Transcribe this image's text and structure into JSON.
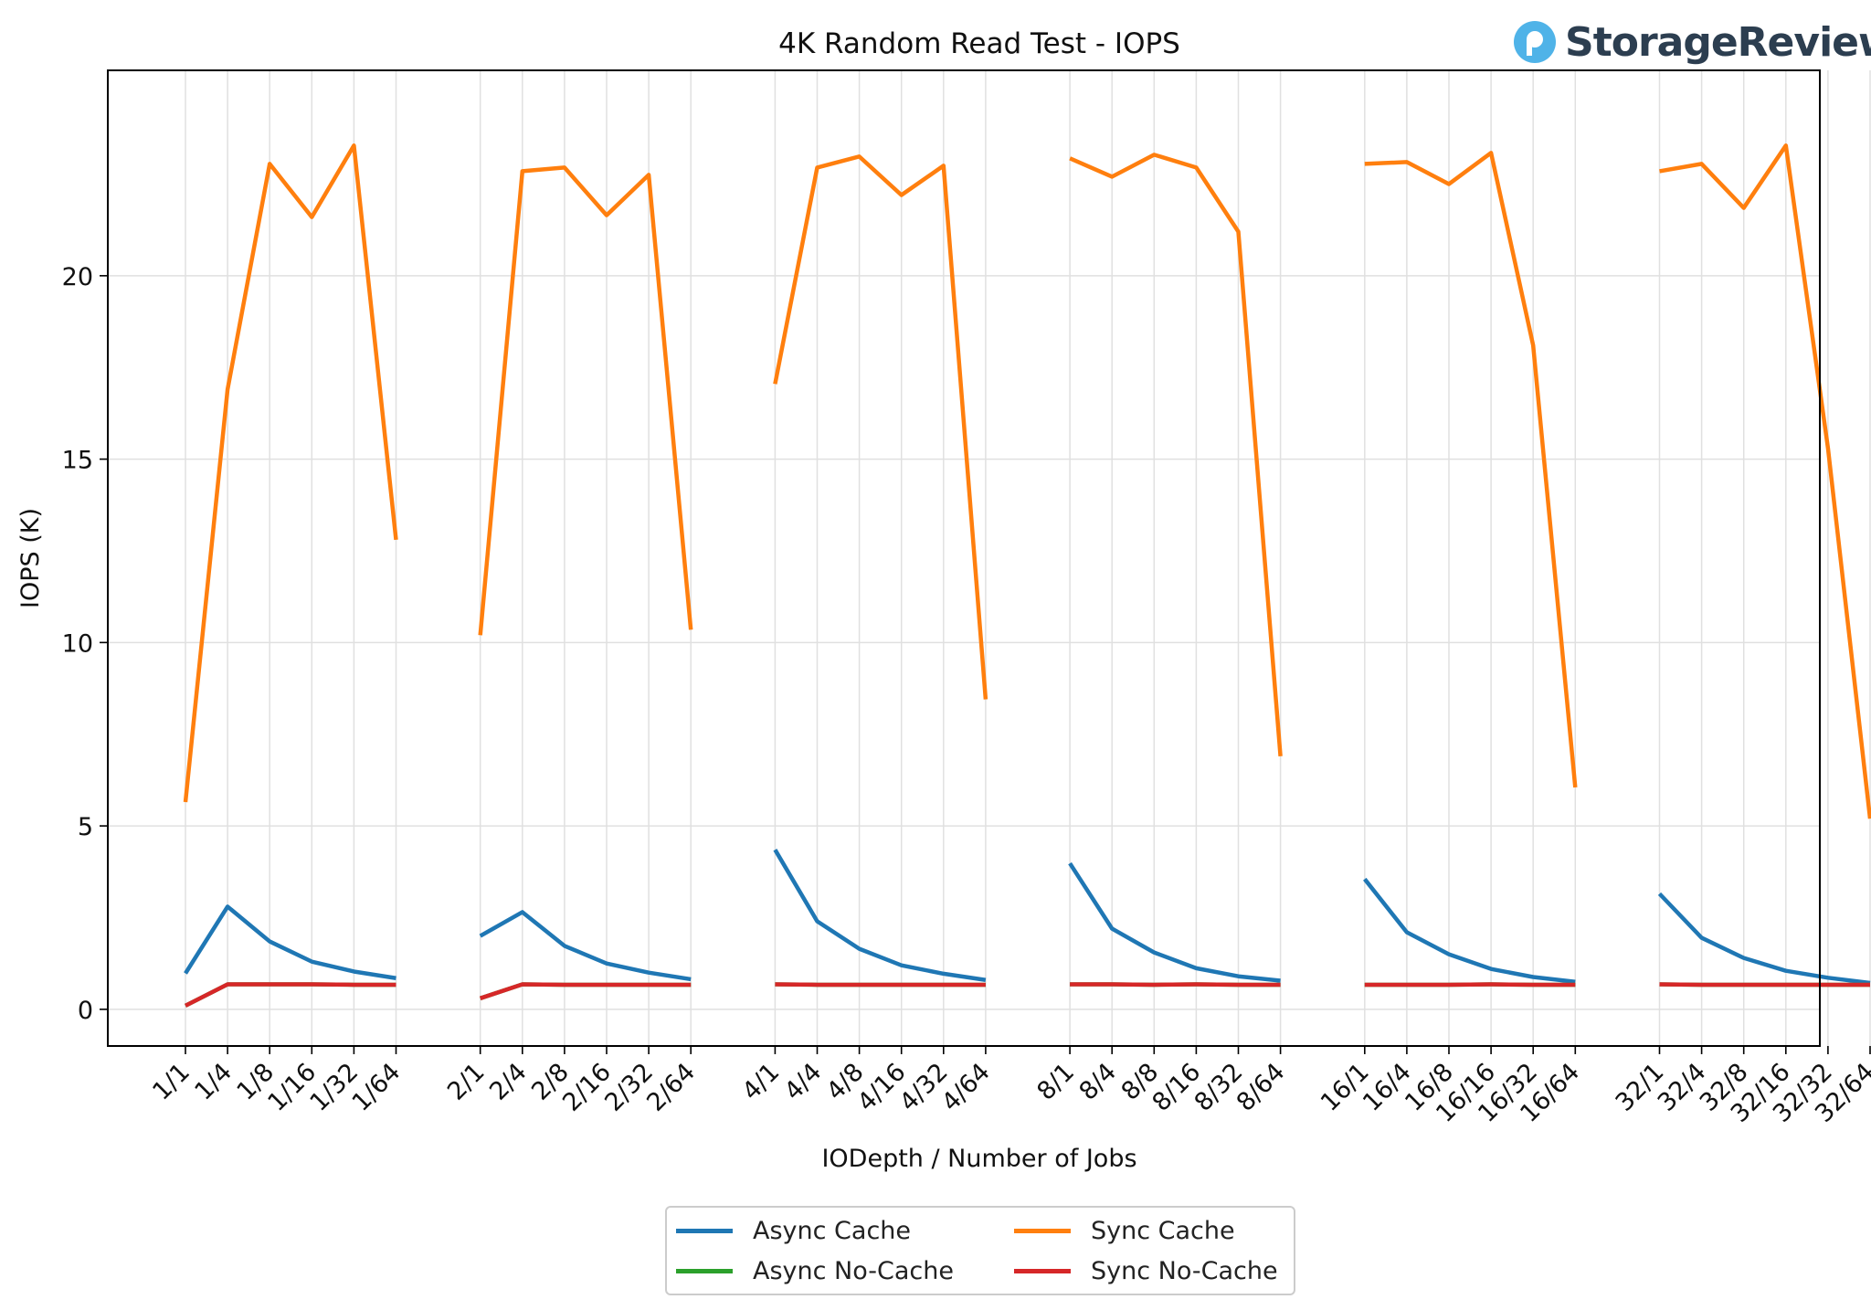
{
  "logo": {
    "text": "StorageReview",
    "icon": "storagereview-logo-icon",
    "color": "#4fb3e8"
  },
  "chart_data": {
    "type": "line",
    "title": "4K Random Read Test - IOPS",
    "xlabel": "IODepth / Number of Jobs",
    "ylabel": "IOPS (K)",
    "ylim": [
      -1,
      25.6
    ],
    "yticks": [
      0,
      5,
      10,
      15,
      20
    ],
    "grid": true,
    "legend_position": "bottom-center",
    "groups": [
      [
        "1/1",
        "1/4",
        "1/8",
        "1/16",
        "1/32",
        "1/64"
      ],
      [
        "2/1",
        "2/4",
        "2/8",
        "2/16",
        "2/32",
        "2/64"
      ],
      [
        "4/1",
        "4/4",
        "4/8",
        "4/16",
        "4/32",
        "4/64"
      ],
      [
        "8/1",
        "8/4",
        "8/8",
        "8/16",
        "8/32",
        "8/64"
      ],
      [
        "16/1",
        "16/4",
        "16/8",
        "16/16",
        "16/32",
        "16/64"
      ],
      [
        "32/1",
        "32/4",
        "32/8",
        "32/16",
        "32/32",
        "32/64"
      ]
    ],
    "series": [
      {
        "name": "Async Cache",
        "color": "#1f77b4",
        "values": [
          0.98,
          2.8,
          1.85,
          1.3,
          1.03,
          0.85,
          2.0,
          2.65,
          1.73,
          1.25,
          1.0,
          0.82,
          4.35,
          2.4,
          1.65,
          1.2,
          0.97,
          0.8,
          3.98,
          2.2,
          1.55,
          1.12,
          0.9,
          0.78,
          3.55,
          2.1,
          1.5,
          1.1,
          0.88,
          0.75,
          3.15,
          1.95,
          1.4,
          1.05,
          0.86,
          0.72
        ]
      },
      {
        "name": "Async No-Cache",
        "color": "#2ca02c",
        "values": [
          0.1,
          0.68,
          0.68,
          0.68,
          0.67,
          0.67,
          0.3,
          0.68,
          0.67,
          0.67,
          0.67,
          0.67,
          0.68,
          0.67,
          0.67,
          0.67,
          0.67,
          0.67,
          0.68,
          0.68,
          0.67,
          0.68,
          0.67,
          0.67,
          0.67,
          0.67,
          0.67,
          0.68,
          0.67,
          0.67,
          0.68,
          0.67,
          0.67,
          0.67,
          0.67,
          0.67
        ]
      },
      {
        "name": "Sync Cache",
        "color": "#ff7f0e",
        "values": [
          5.65,
          16.9,
          23.05,
          21.6,
          23.55,
          12.8,
          10.2,
          22.85,
          22.95,
          21.65,
          22.75,
          10.35,
          17.05,
          22.95,
          23.25,
          22.2,
          23.0,
          8.45,
          23.2,
          22.7,
          23.3,
          22.95,
          21.2,
          6.9,
          23.05,
          23.1,
          22.5,
          23.35,
          18.1,
          6.05,
          22.85,
          23.05,
          21.85,
          23.55,
          15.3,
          5.2
        ]
      },
      {
        "name": "Sync No-Cache",
        "color": "#d62728",
        "values": [
          0.1,
          0.68,
          0.68,
          0.68,
          0.67,
          0.67,
          0.3,
          0.68,
          0.67,
          0.67,
          0.67,
          0.67,
          0.68,
          0.67,
          0.67,
          0.67,
          0.67,
          0.67,
          0.68,
          0.68,
          0.67,
          0.68,
          0.67,
          0.67,
          0.67,
          0.67,
          0.67,
          0.68,
          0.67,
          0.67,
          0.68,
          0.67,
          0.67,
          0.67,
          0.67,
          0.67
        ]
      }
    ]
  }
}
